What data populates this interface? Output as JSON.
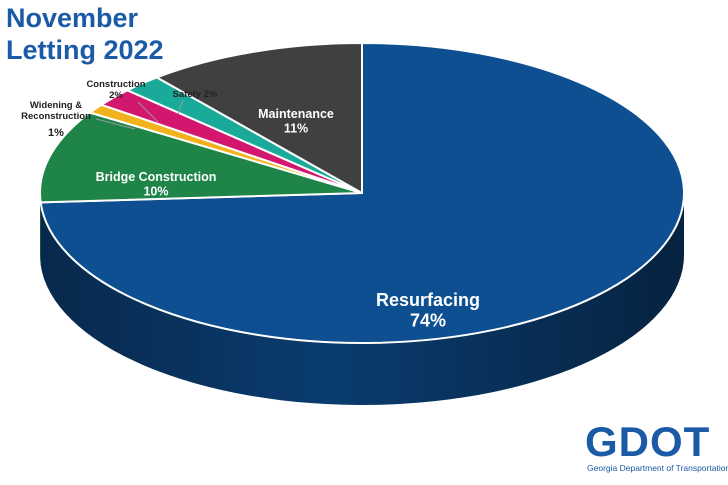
{
  "title": [
    "November",
    "Letting 2022"
  ],
  "chart_data": {
    "type": "pie",
    "title": "November Letting 2022",
    "slices": [
      {
        "label": "Resurfacing",
        "value": 74,
        "percent_label": "74%",
        "color": "#0d4f91",
        "side_color": "#0b3f75"
      },
      {
        "label": "Bridge Construction",
        "value": 10,
        "percent_label": "10%",
        "color": "#1e8448",
        "side_color": "#166334"
      },
      {
        "label": "Widening & Reconstruction",
        "value": 1,
        "percent_label": "1%",
        "color": "#f2b21b",
        "side_color": "#c68c12"
      },
      {
        "label": "Construction",
        "value": 2,
        "percent_label": "2%",
        "color": "#d3176f",
        "side_color": "#a30f55"
      },
      {
        "label": "Safety",
        "value": 2,
        "percent_label": "2%",
        "color": "#1aaa9a",
        "side_color": "#128275"
      },
      {
        "label": "Maintenance",
        "value": 11,
        "percent_label": "11%",
        "color": "#404040",
        "side_color": "#2e2e2e"
      }
    ]
  },
  "logo": {
    "text": "GDOT",
    "subtitle": "Georgia Department of Transportation",
    "color": "#1b5aa6"
  }
}
